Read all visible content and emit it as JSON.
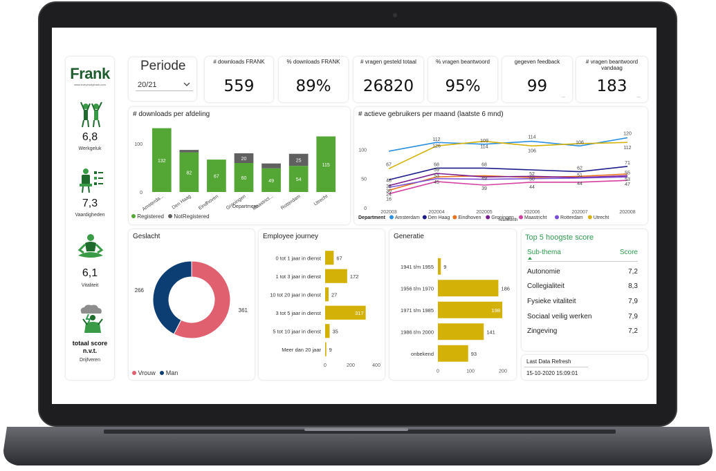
{
  "brand": {
    "logo": "Frank",
    "url": "www.everybodyfrank.com"
  },
  "sidebar": [
    {
      "value": "6,8",
      "label": "Werkgeluk",
      "icon": "people-cheering-icon"
    },
    {
      "value": "7,3",
      "label": "Vaardigheden",
      "icon": "presentation-checklist-icon"
    },
    {
      "value": "6,1",
      "label": "Vitaliteit",
      "icon": "meditation-icon"
    },
    {
      "value": "totaal score n.v.t.",
      "label": "Drijfveren",
      "icon": "person-storm-cloud-icon"
    }
  ],
  "periode": {
    "title": "Periode",
    "selected": "20/21"
  },
  "kpis": [
    {
      "title": "# downloads FRANK",
      "value": "559",
      "sub": ""
    },
    {
      "title": "% downloads FRANK",
      "value": "89%",
      "sub": ""
    },
    {
      "title": "# vragen gesteld totaal",
      "value": "26820",
      "sub": ""
    },
    {
      "title": "% vragen beantwoord",
      "value": "95%",
      "sub": ""
    },
    {
      "title": "gegeven feedback",
      "value": "99",
      "sub": "..."
    },
    {
      "title": "# vragen beantwoord vandaag",
      "value": "183",
      "sub": "..."
    }
  ],
  "colors": {
    "green": "#54a635",
    "grey": "#606060",
    "gold": "#d4b106",
    "pink": "#e06070",
    "navy": "#0d3e73",
    "accent": "#2e9b4e"
  },
  "downloads_chart": {
    "title": "# downloads per afdeling",
    "xlabel": "Department",
    "legend": [
      "Registered",
      "NotRegistered"
    ]
  },
  "active_users_chart": {
    "title": "# actieve gebruikers per maand (laatste 6 mnd)",
    "xlabel": "YearMonth",
    "legend_title": "Department"
  },
  "gender_chart": {
    "title": "Geslacht",
    "legend": [
      "Vrouw",
      "Man"
    ]
  },
  "journey_chart": {
    "title": "Employee journey"
  },
  "generation_chart": {
    "title": "Generatie"
  },
  "top5": {
    "title": "Top 5 hoogste score",
    "col_label": "Sub-thema",
    "col_score": "Score",
    "rows": [
      {
        "label": "Autonomie",
        "score": "7,2"
      },
      {
        "label": "Collegialiteit",
        "score": "8,3"
      },
      {
        "label": "Fysieke vitaliteit",
        "score": "7,9"
      },
      {
        "label": "Sociaal veilig werken",
        "score": "7,9"
      },
      {
        "label": "Zingeving",
        "score": "7,2"
      }
    ]
  },
  "refresh": {
    "label": "Last Data Refresh",
    "value": "15-10-2020 15:09:01"
  },
  "chart_data": [
    {
      "type": "bar",
      "title": "# downloads per afdeling",
      "xlabel": "Department",
      "ylabel": "",
      "ylim": [
        0,
        130
      ],
      "yticks": [
        0,
        100
      ],
      "categories": [
        "Amsterda...",
        "Den Haag",
        "Eindhoven",
        "Groningen",
        "Maastrict...",
        "Rotterdam",
        "Utrecht"
      ],
      "series": [
        {
          "name": "Registered",
          "values": [
            132,
            82,
            67,
            60,
            49,
            54,
            115
          ]
        },
        {
          "name": "NotRegistered",
          "values": [
            0,
            5,
            0,
            20,
            10,
            25,
            0
          ]
        }
      ],
      "value_labels": [
        [
          "132",
          "82",
          "67",
          "60",
          "49",
          "54",
          "115"
        ],
        [
          "",
          "",
          "",
          "20",
          "",
          "25",
          ""
        ]
      ]
    },
    {
      "type": "line",
      "title": "# actieve gebruikers per maand (laatste 6 mnd)",
      "xlabel": "YearMonth",
      "ylabel": "",
      "ylim": [
        0,
        130
      ],
      "yticks": [
        0,
        50,
        100
      ],
      "x": [
        "202003",
        "202004",
        "202005",
        "202006",
        "202007",
        "202008"
      ],
      "series": [
        {
          "name": "Amsterdam",
          "values": [
            97,
            112,
            109,
            114,
            106,
            120
          ]
        },
        {
          "name": "Den Haag",
          "values": [
            48,
            68,
            68,
            65,
            62,
            71
          ]
        },
        {
          "name": "Eindhoven",
          "values": [
            30,
            53,
            55,
            52,
            54,
            58
          ]
        },
        {
          "name": "Groningen",
          "values": [
            38,
            59,
            53,
            54,
            52,
            55
          ]
        },
        {
          "name": "Maastricht",
          "values": [
            24,
            45,
            39,
            44,
            44,
            47
          ]
        },
        {
          "name": "Rotterdam",
          "values": [
            35,
            50,
            49,
            50,
            51,
            53
          ]
        },
        {
          "name": "Utrecht",
          "values": [
            67,
            106,
            114,
            106,
            110,
            112
          ]
        }
      ],
      "point_labels": [
        "120",
        "112",
        "114",
        "109",
        "106",
        "114",
        "126",
        "67",
        "68",
        "71",
        "55",
        "58",
        "52",
        "51",
        "50",
        "49",
        "47",
        "45",
        "44",
        "39",
        "38",
        "35",
        "30",
        "24",
        "16"
      ]
    },
    {
      "type": "pie",
      "title": "Geslacht",
      "categories": [
        "Vrouw",
        "Man"
      ],
      "values": [
        361,
        266
      ]
    },
    {
      "type": "bar",
      "title": "Employee journey",
      "orientation": "horizontal",
      "categories": [
        "0 tot 1 jaar in dienst",
        "1 tot 3 jaar in dienst",
        "10 tot 20 jaar in dienst",
        "3 tot 5 jaar in dienst",
        "5 tot 10 jaar in dienst",
        "Meer dan 20 jaar"
      ],
      "values": [
        67,
        172,
        27,
        317,
        35,
        9
      ],
      "xlim": [
        0,
        400
      ],
      "xticks": [
        0,
        200,
        400
      ]
    },
    {
      "type": "bar",
      "title": "Generatie",
      "orientation": "horizontal",
      "categories": [
        "1941 t/m 1955",
        "1956 t/m 1970",
        "1971 t/m 1985",
        "1986 t/m 2000",
        "onbekend"
      ],
      "values": [
        9,
        186,
        198,
        141,
        93
      ],
      "xlim": [
        0,
        200
      ],
      "xticks": [
        0,
        100,
        200
      ]
    }
  ]
}
